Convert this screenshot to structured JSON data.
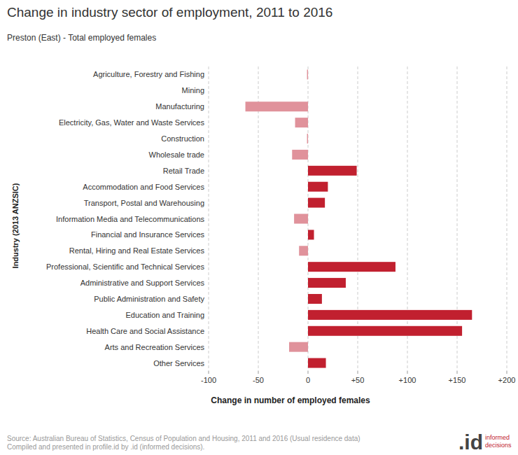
{
  "chart_data": {
    "type": "bar",
    "orientation": "horizontal",
    "title": "Change in industry sector of employment, 2011 to 2016",
    "subtitle": "Preston (East) - Total employed females",
    "x_label": "Change in number of employed females",
    "y_label": "Industry (2013 ANZSIC)",
    "categories": [
      "Agriculture, Forestry and Fishing",
      "Mining",
      "Manufacturing",
      "Electricity, Gas, Water and Waste Services",
      "Construction",
      "Wholesale trade",
      "Retail Trade",
      "Accommodation and Food Services",
      "Transport, Postal and Warehousing",
      "Information Media and Telecommunications",
      "Financial and Insurance Services",
      "Rental, Hiring and Real Estate Services",
      "Professional, Scientific and Technical Services",
      "Administrative and Support Services",
      "Public Administration and Safety",
      "Education and Training",
      "Health Care and Social Assistance",
      "Arts and Recreation Services",
      "Other Services"
    ],
    "values": [
      -1,
      0,
      -63,
      -13,
      -1,
      -16,
      49,
      20,
      17,
      -14,
      6,
      -9,
      88,
      38,
      14,
      165,
      155,
      -19,
      18
    ],
    "colors": [
      "#e0929b",
      "#e0929b",
      "#e0929b",
      "#e0929b",
      "#e0929b",
      "#e0929b",
      "#c1202f",
      "#c1202f",
      "#c1202f",
      "#e0929b",
      "#c1202f",
      "#e0929b",
      "#c1202f",
      "#c1202f",
      "#c1202f",
      "#c1202f",
      "#c1202f",
      "#e0929b",
      "#c1202f"
    ],
    "xlim": [
      -100,
      200
    ],
    "xticks": [
      -100,
      -50,
      0,
      {
        "value": 50,
        "label": "+50"
      },
      {
        "value": 100,
        "label": "+100"
      },
      {
        "value": 150,
        "label": "+150"
      },
      {
        "value": 200,
        "label": "+200"
      }
    ],
    "grid": true,
    "source": [
      "Source: Australian Bureau of Statistics, Census of Population and Housing, 2011 and 2016 (Usual residence data)",
      "Compiled and presented in profile.id by .id (informed decisions)."
    ],
    "logo": {
      "mark": ".id",
      "lines": [
        "informed",
        "decisions"
      ]
    }
  }
}
